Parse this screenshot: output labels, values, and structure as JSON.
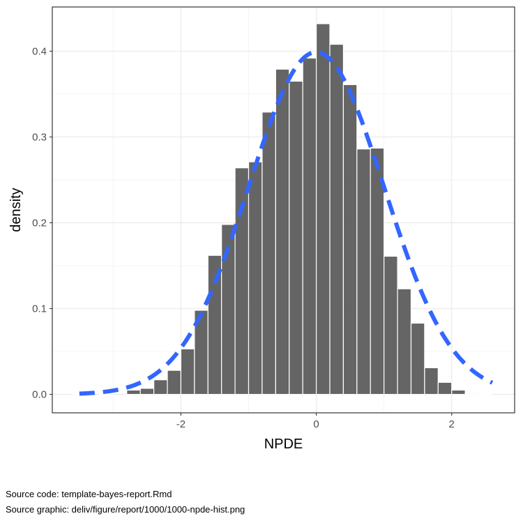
{
  "chart_data": {
    "type": "bar",
    "xlabel": "NPDE",
    "ylabel": "density",
    "xlim": [
      -3.9,
      2.93
    ],
    "ylim": [
      -0.0215,
      0.4515
    ],
    "xticks": [
      -2,
      0,
      2
    ],
    "xtick_labels": [
      "-2",
      "0",
      "2"
    ],
    "yticks": [
      0.0,
      0.1,
      0.2,
      0.3,
      0.4
    ],
    "ytick_labels": [
      "0.0",
      "0.1",
      "0.2",
      "0.3",
      "0.4"
    ],
    "grid": true,
    "bin_width": 0.2,
    "bins": [
      {
        "x": -2.7,
        "value": 0.005
      },
      {
        "x": -2.5,
        "value": 0.007
      },
      {
        "x": -2.3,
        "value": 0.017
      },
      {
        "x": -2.1,
        "value": 0.028
      },
      {
        "x": -1.9,
        "value": 0.053
      },
      {
        "x": -1.7,
        "value": 0.098
      },
      {
        "x": -1.5,
        "value": 0.162
      },
      {
        "x": -1.3,
        "value": 0.198
      },
      {
        "x": -1.1,
        "value": 0.264
      },
      {
        "x": -0.9,
        "value": 0.271
      },
      {
        "x": -0.7,
        "value": 0.329
      },
      {
        "x": -0.5,
        "value": 0.379
      },
      {
        "x": -0.3,
        "value": 0.365
      },
      {
        "x": -0.1,
        "value": 0.392
      },
      {
        "x": 0.1,
        "value": 0.432
      },
      {
        "x": 0.3,
        "value": 0.408
      },
      {
        "x": 0.5,
        "value": 0.361
      },
      {
        "x": 0.7,
        "value": 0.286
      },
      {
        "x": 0.9,
        "value": 0.287
      },
      {
        "x": 1.1,
        "value": 0.161
      },
      {
        "x": 1.3,
        "value": 0.123
      },
      {
        "x": 1.5,
        "value": 0.083
      },
      {
        "x": 1.7,
        "value": 0.031
      },
      {
        "x": 1.9,
        "value": 0.014
      },
      {
        "x": 2.1,
        "value": 0.005
      },
      {
        "x": 2.3,
        "value": 0.001
      }
    ],
    "tiny_bins": [
      {
        "x": -3.5,
        "value": 0.0008
      },
      {
        "x": -3.1,
        "value": 0.0008
      },
      {
        "x": 2.5,
        "value": 0.0008
      }
    ],
    "reference_curve": {
      "type": "normal-density",
      "mean": 0,
      "sd": 1,
      "x_range": [
        -3.5,
        2.6
      ],
      "color": "#3366ff",
      "style": "dashed"
    },
    "bar_color": "#595959"
  },
  "footer": {
    "source_code": "Source code: template-bayes-report.Rmd",
    "source_graphic": "Source graphic: deliv/figure/report/1000/1000-npde-hist.png"
  }
}
